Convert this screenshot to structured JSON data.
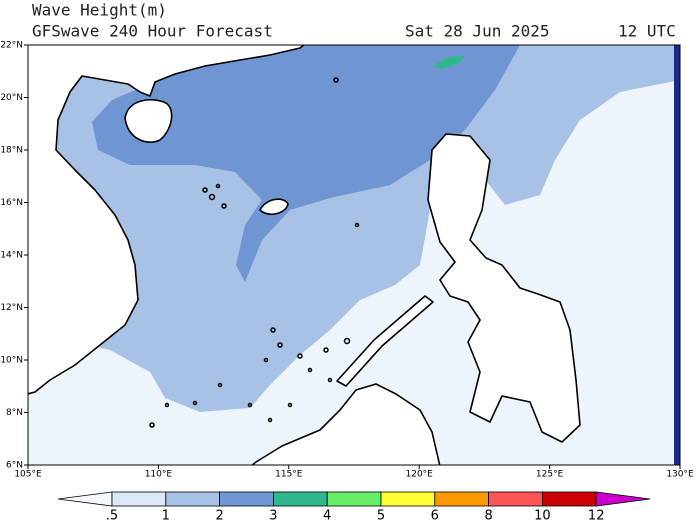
{
  "header": {
    "title": "Wave Height(m)",
    "subtitle": "GFSwave 240 Hour Forecast",
    "date": "Sat 28 Jun 2025",
    "time": "12 UTC"
  },
  "map": {
    "lat_labels": [
      "22°N",
      "20°N",
      "18°N",
      "16°N",
      "14°N",
      "12°N",
      "10°N",
      "8°N",
      "6°N"
    ],
    "lon_labels": [
      "105°E",
      "110°E",
      "115°E",
      "120°E",
      "125°E",
      "130°E"
    ]
  },
  "colorbar": {
    "labels": [
      ".5",
      "1",
      "2",
      "3",
      "4",
      "5",
      "6",
      "8",
      "10",
      "12"
    ],
    "colors": [
      "#f4f8fc",
      "#dce8f5",
      "#a8c2e6",
      "#6f95d3",
      "#2fb88d",
      "#66ee66",
      "#ffff33",
      "#ff9900",
      "#ff5555",
      "#cc0000",
      "#cc00cc"
    ]
  }
}
